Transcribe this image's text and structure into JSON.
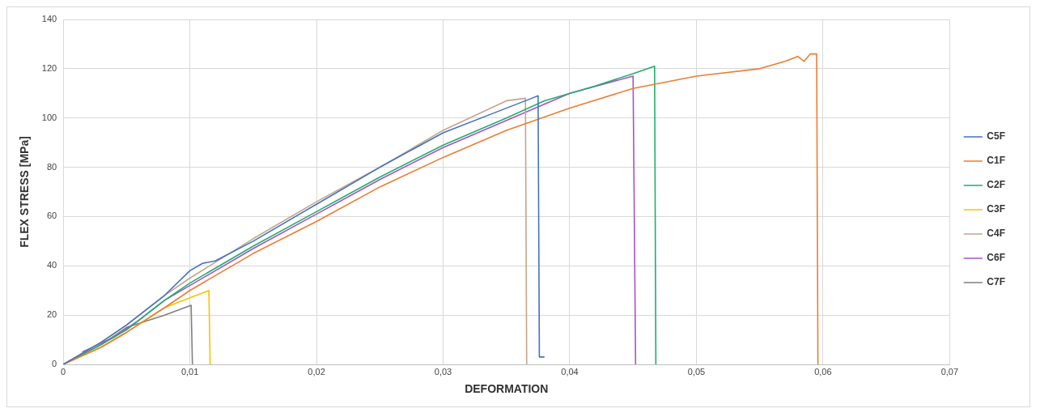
{
  "chart_data": {
    "type": "line",
    "xlabel": "DEFORMATION",
    "ylabel": "FLEX STRESS [MPa]",
    "xlim": [
      0,
      0.07
    ],
    "ylim": [
      0,
      140
    ],
    "xticks": [
      0,
      {
        "value": 0.01,
        "label": "0,01"
      },
      {
        "value": 0.02,
        "label": "0,02"
      },
      {
        "value": 0.03,
        "label": "0,03"
      },
      {
        "value": 0.04,
        "label": "0,04"
      },
      {
        "value": 0.05,
        "label": "0,05"
      },
      {
        "value": 0.06,
        "label": "0,06"
      },
      {
        "value": 0.07,
        "label": "0,07"
      }
    ],
    "yticks": [
      0,
      20,
      40,
      60,
      80,
      100,
      120,
      140
    ],
    "grid": true,
    "legend": "right",
    "marker": "none",
    "line_style": "solid",
    "series": [
      {
        "name": "C5F",
        "color": "#4472c4",
        "x": [
          0,
          0.003,
          0.005,
          0.008,
          0.01,
          0.011,
          0.012,
          0.015,
          0.02,
          0.025,
          0.03,
          0.034,
          0.037,
          0.0375,
          0.0376,
          0.038
        ],
        "values": [
          0,
          9,
          16,
          28,
          38,
          41,
          42,
          50,
          65,
          80,
          94,
          102,
          108,
          109,
          3,
          3
        ]
      },
      {
        "name": "C1F",
        "color": "#ed7d31",
        "x": [
          0,
          0.003,
          0.005,
          0.008,
          0.01,
          0.015,
          0.02,
          0.025,
          0.03,
          0.035,
          0.04,
          0.045,
          0.05,
          0.055,
          0.057,
          0.058,
          0.0585,
          0.059,
          0.0595,
          0.0596
        ],
        "values": [
          0,
          7,
          13,
          23,
          30,
          45,
          58,
          72,
          84,
          95,
          104,
          112,
          117,
          120,
          123,
          125,
          123,
          126,
          126,
          0
        ]
      },
      {
        "name": "C2F",
        "color": "#1fae6e",
        "x": [
          0,
          0.003,
          0.005,
          0.008,
          0.01,
          0.015,
          0.02,
          0.025,
          0.03,
          0.035,
          0.038,
          0.042,
          0.045,
          0.0467,
          0.0468
        ],
        "values": [
          0,
          8,
          14,
          26,
          33,
          48,
          62,
          76,
          89,
          100,
          107,
          113,
          118,
          121,
          0
        ]
      },
      {
        "name": "C3F",
        "color": "#ffc000",
        "x": [
          0,
          0.003,
          0.005,
          0.008,
          0.0105,
          0.0115,
          0.0116
        ],
        "values": [
          0,
          7,
          13,
          23,
          28,
          30,
          0
        ]
      },
      {
        "name": "C4F",
        "color": "#c4a58c",
        "x": [
          0,
          0.003,
          0.005,
          0.008,
          0.01,
          0.015,
          0.02,
          0.025,
          0.03,
          0.035,
          0.0365,
          0.0366
        ],
        "values": [
          0,
          9,
          16,
          28,
          35,
          51,
          66,
          80,
          95,
          107,
          108,
          0
        ]
      },
      {
        "name": "C6F",
        "color": "#a652c9",
        "x": [
          0.0015,
          0.004,
          0.006,
          0.008,
          0.01,
          0.015,
          0.02,
          0.025,
          0.03,
          0.035,
          0.04,
          0.045,
          0.0452
        ],
        "values": [
          5,
          11,
          18,
          26,
          32,
          47,
          61,
          75,
          88,
          99,
          110,
          117,
          0
        ]
      },
      {
        "name": "C7F",
        "color": "#808080",
        "x": [
          0,
          0.003,
          0.005,
          0.008,
          0.0101,
          0.0102
        ],
        "values": [
          0,
          8,
          15,
          20,
          24,
          0
        ]
      }
    ]
  }
}
